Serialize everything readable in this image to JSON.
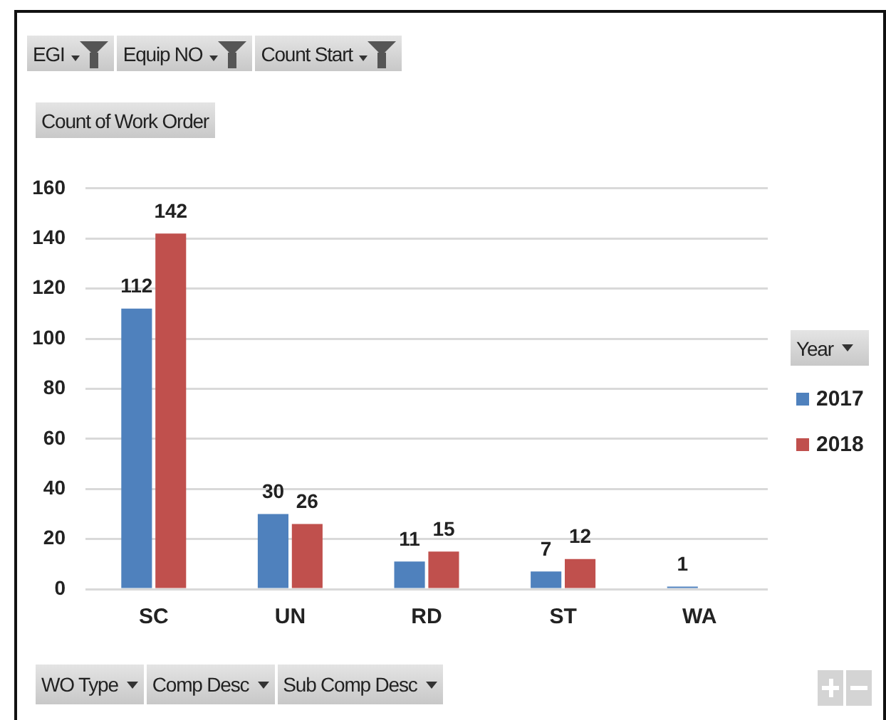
{
  "chart_data": {
    "type": "bar",
    "ylabel": "Count of Work Order",
    "legend_title": "Year",
    "categories": [
      "SC",
      "UN",
      "RD",
      "ST",
      "WA"
    ],
    "series": [
      {
        "name": "2017",
        "color": "#4f81bd",
        "values": [
          112,
          30,
          11,
          7,
          1
        ]
      },
      {
        "name": "2018",
        "color": "#c0504d",
        "values": [
          142,
          26,
          15,
          12,
          null
        ]
      }
    ],
    "ylim": [
      0,
      160
    ],
    "yticks": [
      0,
      20,
      40,
      60,
      80,
      100,
      120,
      140,
      160
    ],
    "grid": "y",
    "legend": "right",
    "data_labels": true,
    "annotations": [
      "EGI",
      "Equip NO",
      "Count Start",
      "WO Type",
      "Comp Desc",
      "Sub Comp Desc"
    ]
  }
}
